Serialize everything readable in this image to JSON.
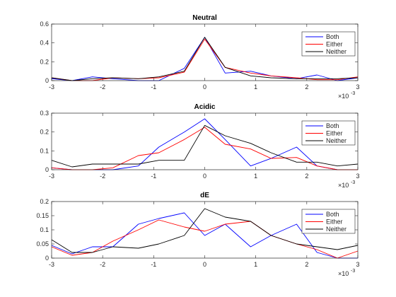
{
  "chart_data": [
    {
      "type": "line",
      "title": "Neutral",
      "x": [
        -0.003,
        -0.0026,
        -0.0022,
        -0.0018,
        -0.0013,
        -0.0009,
        -0.0004,
        0.0,
        0.0004,
        0.0009,
        0.0013,
        0.0018,
        0.0022,
        0.0026,
        0.003
      ],
      "xlim": [
        -0.003,
        0.003
      ],
      "ylim": [
        0,
        0.6
      ],
      "xticks": [
        -3,
        -2,
        -1,
        0,
        1,
        2,
        3
      ],
      "yticks": [
        "0",
        "0.2",
        "0.4",
        "0.6"
      ],
      "x_exponent": "×10",
      "x_exponent_power": "-3",
      "legend_position": "top-right",
      "series": [
        {
          "name": "Both",
          "color": "#0000ff",
          "values": [
            0.02,
            0.0,
            0.04,
            0.02,
            0.0,
            0.0,
            0.13,
            0.46,
            0.08,
            0.1,
            0.05,
            0.02,
            0.06,
            0.0,
            0.03
          ]
        },
        {
          "name": "Either",
          "color": "#ff0000",
          "values": [
            0.03,
            0.0,
            0.0,
            0.03,
            0.02,
            0.03,
            0.09,
            0.44,
            0.14,
            0.08,
            0.05,
            0.03,
            0.01,
            0.01,
            0.04
          ]
        },
        {
          "name": "Neither",
          "color": "#000000",
          "values": [
            0.03,
            0.0,
            0.02,
            0.03,
            0.02,
            0.04,
            0.1,
            0.46,
            0.14,
            0.05,
            0.03,
            0.02,
            0.02,
            0.02,
            0.03
          ]
        }
      ]
    },
    {
      "type": "line",
      "title": "Acidic",
      "x": [
        -0.003,
        -0.0026,
        -0.0022,
        -0.0018,
        -0.0013,
        -0.0009,
        -0.0004,
        0.0,
        0.0004,
        0.0009,
        0.0013,
        0.0018,
        0.0022,
        0.0026,
        0.003
      ],
      "xlim": [
        -0.003,
        0.003
      ],
      "ylim": [
        0,
        0.3
      ],
      "xticks": [
        -3,
        -2,
        -1,
        0,
        1,
        2,
        3
      ],
      "yticks": [
        "0",
        "0.1",
        "0.2",
        "0.3"
      ],
      "x_exponent": "×10",
      "x_exponent_power": "-3",
      "legend_position": "top-right",
      "series": [
        {
          "name": "Both",
          "color": "#0000ff",
          "values": [
            0.01,
            0.0,
            0.0,
            0.0,
            0.02,
            0.12,
            0.2,
            0.27,
            0.16,
            0.02,
            0.06,
            0.12,
            0.02,
            0.0,
            0.0
          ]
        },
        {
          "name": "Either",
          "color": "#ff0000",
          "values": [
            0.01,
            0.0,
            0.0,
            0.01,
            0.075,
            0.09,
            0.16,
            0.225,
            0.135,
            0.11,
            0.06,
            0.065,
            0.02,
            0.0,
            0.0
          ]
        },
        {
          "name": "Neither",
          "color": "#000000",
          "values": [
            0.05,
            0.015,
            0.03,
            0.03,
            0.03,
            0.05,
            0.05,
            0.235,
            0.18,
            0.14,
            0.09,
            0.04,
            0.04,
            0.02,
            0.03
          ]
        }
      ]
    },
    {
      "type": "line",
      "title": "dE",
      "x": [
        -0.003,
        -0.0026,
        -0.0022,
        -0.0018,
        -0.0013,
        -0.0009,
        -0.0004,
        0.0,
        0.0004,
        0.0009,
        0.0013,
        0.0018,
        0.0022,
        0.0026,
        0.003
      ],
      "xlim": [
        -0.003,
        0.003
      ],
      "ylim": [
        0,
        0.2
      ],
      "xticks": [
        -3,
        -2,
        -1,
        0,
        1,
        2,
        3
      ],
      "yticks": [
        "0",
        "0.05",
        "0.1",
        "0.15",
        "0.2"
      ],
      "x_exponent": "×10",
      "x_exponent_power": "-3",
      "legend_position": "top-right",
      "series": [
        {
          "name": "Both",
          "color": "#0000ff",
          "values": [
            0.045,
            0.015,
            0.04,
            0.04,
            0.12,
            0.14,
            0.16,
            0.08,
            0.12,
            0.04,
            0.08,
            0.12,
            0.02,
            0.0,
            0.0
          ]
        },
        {
          "name": "Either",
          "color": "#ff0000",
          "values": [
            0.04,
            0.01,
            0.02,
            0.06,
            0.1,
            0.135,
            0.11,
            0.095,
            0.12,
            0.13,
            0.08,
            0.05,
            0.03,
            0.0,
            0.025
          ]
        },
        {
          "name": "Neither",
          "color": "#000000",
          "values": [
            0.065,
            0.02,
            0.02,
            0.04,
            0.035,
            0.05,
            0.08,
            0.175,
            0.145,
            0.13,
            0.08,
            0.05,
            0.04,
            0.03,
            0.045
          ]
        }
      ]
    }
  ]
}
